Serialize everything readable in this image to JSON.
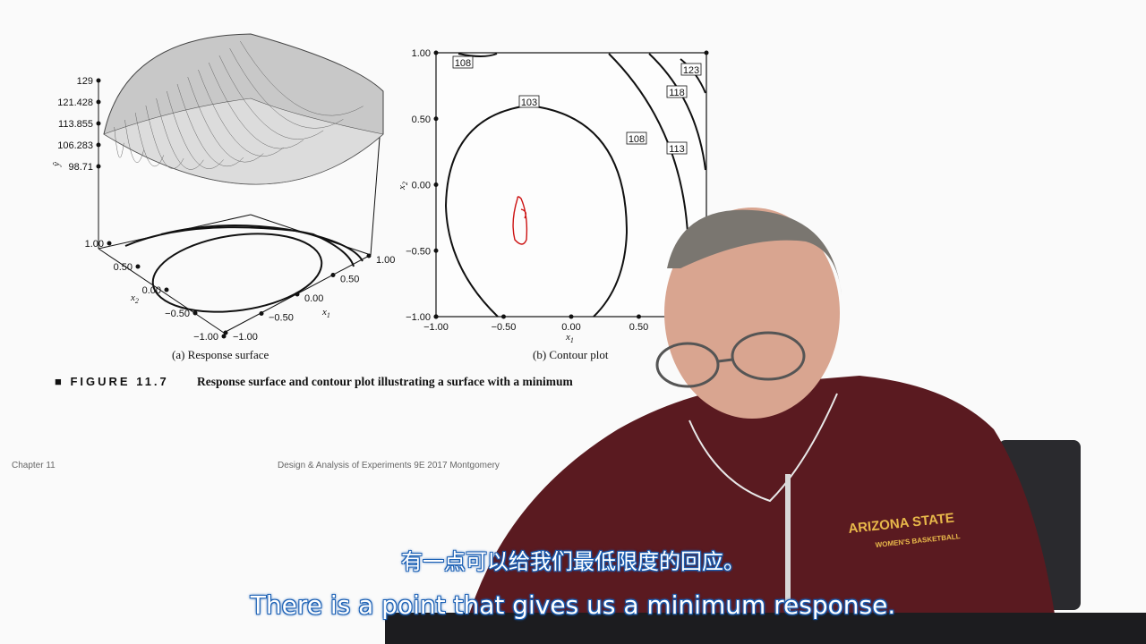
{
  "figure": {
    "title": "■ FIGURE 11.7",
    "description": "Response surface and contour plot illustrating a surface with a minimum",
    "caption_a": "(a) Response surface",
    "caption_b": "(b) Contour plot"
  },
  "footer": {
    "chapter": "Chapter 11",
    "source": "Design & Analysis of Experiments 9E 2017 Montgomery"
  },
  "subtitles": {
    "chinese": "有一点可以给我们最低限度的回应。",
    "english": "There is a point that gives us a minimum response."
  },
  "chart_data": [
    {
      "type": "surface",
      "zlabel": "ŷ",
      "xlabel": "x1",
      "ylabel": "x2",
      "z_ticks": [
        "129",
        "121.428",
        "113.855",
        "106.283",
        "98.71"
      ],
      "x_ticks": [
        "−1.00",
        "−0.50",
        "0.00",
        "0.50",
        "1.00"
      ],
      "y_ticks": [
        "1.00",
        "0.50",
        "0.00",
        "−0.50",
        "−1.00"
      ]
    },
    {
      "type": "contour",
      "xlabel": "x1",
      "ylabel": "x2",
      "x_ticks": [
        "−1.00",
        "−0.50",
        "0.00",
        "0.50"
      ],
      "y_ticks": [
        "1.00",
        "0.50",
        "0.00",
        "−0.50",
        "−1.00"
      ],
      "xlim": [
        -1,
        1
      ],
      "ylim": [
        -1,
        1
      ],
      "contour_levels": [
        "108",
        "103",
        "108",
        "113",
        "118",
        "123"
      ],
      "colors": {
        "contour": "#111111",
        "annotation": "#cc1111"
      }
    }
  ],
  "presenter": {
    "shirt_text_1": "ARIZONA STATE",
    "shirt_text_2": "WOMEN'S BASKETBALL"
  }
}
